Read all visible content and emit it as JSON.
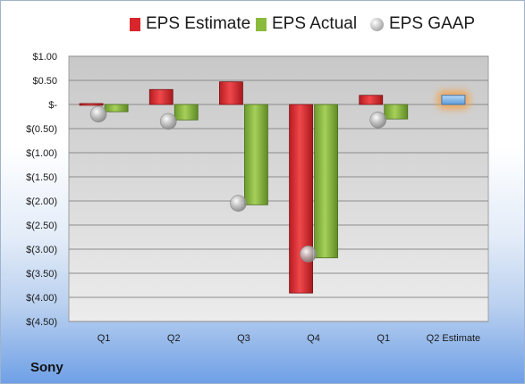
{
  "chart_data": {
    "type": "bar",
    "title": "",
    "xlabel": "",
    "ylabel": "",
    "categories": [
      "Q1",
      "Q2",
      "Q3",
      "Q4",
      "Q1",
      "Q2 Estimate"
    ],
    "ylim": [
      -4.5,
      1.0
    ],
    "yticks": [
      1.0,
      0.5,
      0.0,
      -0.5,
      -1.0,
      -1.5,
      -2.0,
      -2.5,
      -3.0,
      -3.5,
      -4.0,
      -4.5
    ],
    "ytick_labels": [
      "$1.00",
      "$0.50",
      "$-",
      "$(0.50)",
      "$(1.00)",
      "$(1.50)",
      "$(2.00)",
      "$(2.50)",
      "$(3.00)",
      "$(3.50)",
      "$(4.00)",
      "$(4.50)"
    ],
    "grid": true,
    "legend_position": "top",
    "series": [
      {
        "name": "EPS Estimate",
        "color": "#e0262b",
        "values": [
          0.02,
          0.31,
          0.47,
          -3.91,
          0.19,
          0.19
        ]
      },
      {
        "name": "EPS Actual",
        "color": "#8bbb3c",
        "values": [
          -0.15,
          -0.32,
          -2.08,
          -3.18,
          -0.3,
          null
        ]
      },
      {
        "name": "EPS GAAP",
        "color": "#b8b8b8",
        "values": [
          -0.2,
          -0.35,
          -2.05,
          -3.1,
          -0.32,
          null
        ]
      }
    ],
    "highlight": {
      "category_index": 5,
      "color": "#7eb3e6",
      "glow": "#f4a348"
    }
  },
  "footer": {
    "company": "Sony"
  }
}
